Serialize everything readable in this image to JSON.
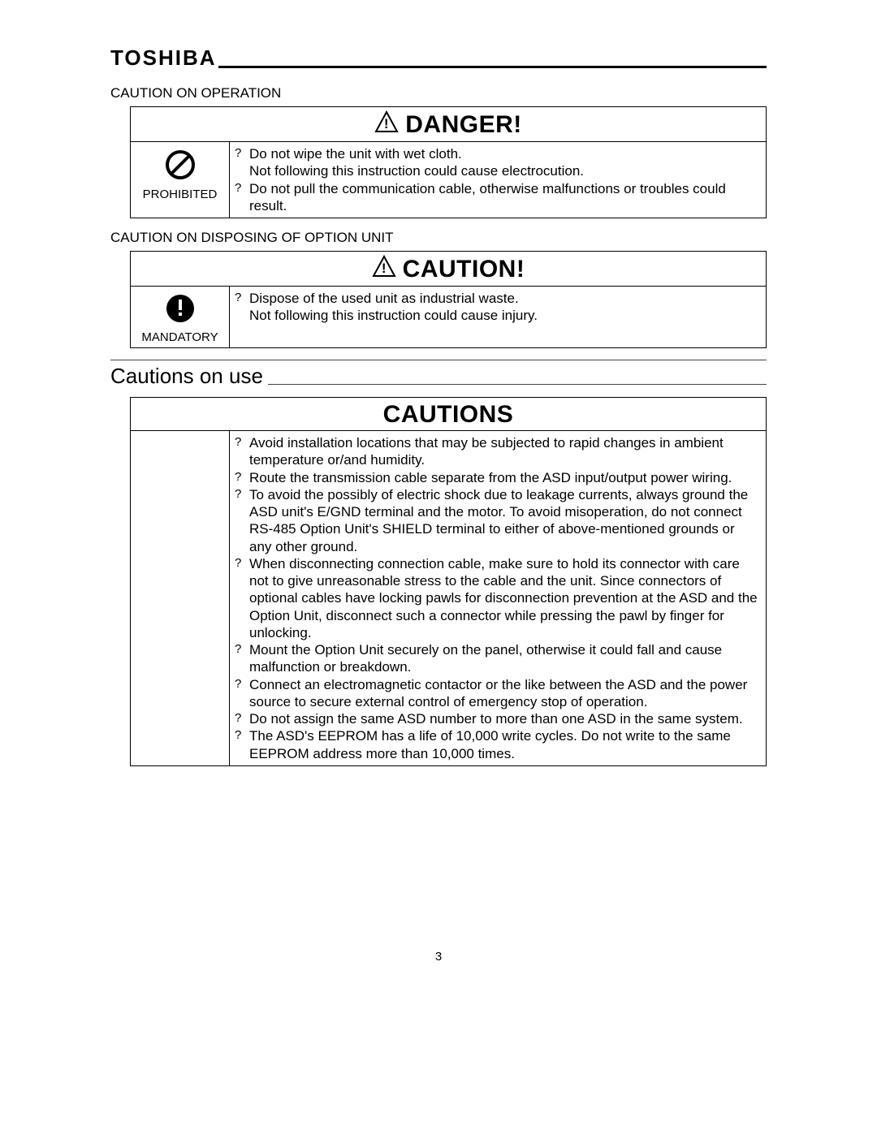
{
  "brand": "TOSHIBA",
  "page_number": "3",
  "bullet_marker": "?",
  "sections": {
    "operation": {
      "label": "CAUTION ON OPERATION",
      "box": {
        "header": "DANGER!",
        "icon_label": "PROHIBITED",
        "items": [
          "Do not wipe the unit with wet cloth.\nNot following this instruction could cause electrocution.",
          "Do not pull the communication cable, otherwise malfunctions or troubles could result."
        ]
      }
    },
    "disposing": {
      "label": "CAUTION ON DISPOSING OF OPTION UNIT",
      "box": {
        "header": "CAUTION!",
        "icon_label": "MANDATORY",
        "items": [
          "Dispose of the used unit as industrial waste.\nNot following this instruction could cause injury."
        ]
      }
    },
    "use": {
      "title": "Cautions on use",
      "box": {
        "header": "CAUTIONS",
        "items": [
          "Avoid installation locations that may be subjected to rapid changes in ambient temperature or/and humidity.",
          "Route the transmission cable separate from the ASD input/output power wiring.",
          "To avoid the possibly of electric shock due to leakage currents, always ground the ASD unit's E/GND terminal and the motor. To avoid misoperation, do not connect RS-485 Option Unit's SHIELD terminal to either of above-mentioned grounds or any other ground.",
          "When disconnecting connection cable, make sure to hold its connector with care not to give unreasonable stress to the cable and the unit. Since connectors of optional cables have locking pawls for disconnection prevention at the ASD and the Option Unit, disconnect such a connector while pressing the pawl by finger for unlocking.",
          "Mount the Option Unit securely on the panel, otherwise it could fall and cause malfunction or breakdown.",
          "Connect an electromagnetic contactor or the like between the ASD and the power source to secure external control of emergency stop of operation.",
          "Do not assign the same ASD number to more than one ASD in the same system.",
          "The ASD's EEPROM has a life of 10,000 write cycles. Do not write to the same EEPROM address more than 10,000 times."
        ]
      }
    }
  }
}
